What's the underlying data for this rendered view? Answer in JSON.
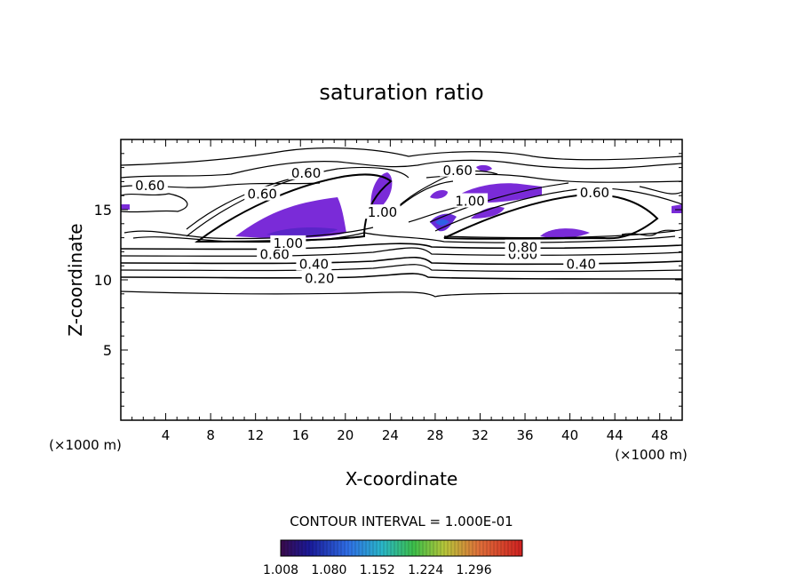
{
  "chart_data": {
    "type": "contour",
    "title": "saturation ratio",
    "xlabel": "X-coordinate",
    "ylabel": "Z-coordinate",
    "x_unit_label": "(×1000 m)",
    "z_unit_label": "(×1000 m)",
    "xlim": [
      0,
      50
    ],
    "ylim": [
      0,
      20
    ],
    "x_ticks": [
      4,
      8,
      12,
      16,
      20,
      24,
      28,
      32,
      36,
      40,
      44,
      48
    ],
    "y_ticks": [
      5,
      10,
      15
    ],
    "contour_interval_text": "CONTOUR INTERVAL = 1.000E-01",
    "contour_labels": [
      {
        "text": "0.20",
        "x": 17.7,
        "z": 10.1
      },
      {
        "text": "0.40",
        "x": 17.2,
        "z": 11.1
      },
      {
        "text": "0.40",
        "x": 41.0,
        "z": 11.1
      },
      {
        "text": "0.60",
        "x": 13.7,
        "z": 11.8
      },
      {
        "text": "0.60",
        "x": 35.8,
        "z": 11.8
      },
      {
        "text": "0.80",
        "x": 35.8,
        "z": 12.3
      },
      {
        "text": "0.60",
        "x": 2.6,
        "z": 16.7
      },
      {
        "text": "0.60",
        "x": 12.6,
        "z": 16.1
      },
      {
        "text": "0.60",
        "x": 16.5,
        "z": 17.6
      },
      {
        "text": "0.60",
        "x": 30.0,
        "z": 17.8
      },
      {
        "text": "0.60",
        "x": 42.2,
        "z": 16.2
      },
      {
        "text": "1.00",
        "x": 14.9,
        "z": 12.6
      },
      {
        "text": "1.00",
        "x": 31.1,
        "z": 15.6
      },
      {
        "text": "1.00",
        "x": 23.3,
        "z": 14.8
      }
    ],
    "colorbar": {
      "ticks": [
        "1.008",
        "1.080",
        "1.152",
        "1.224",
        "1.296"
      ],
      "min": 1.008,
      "max": 1.368
    }
  },
  "colors": {
    "fill_main": "#7a2bd8",
    "fill_dark": "#4b1fb8",
    "fill_blue": "#2f5fe6",
    "line": "#000000"
  }
}
